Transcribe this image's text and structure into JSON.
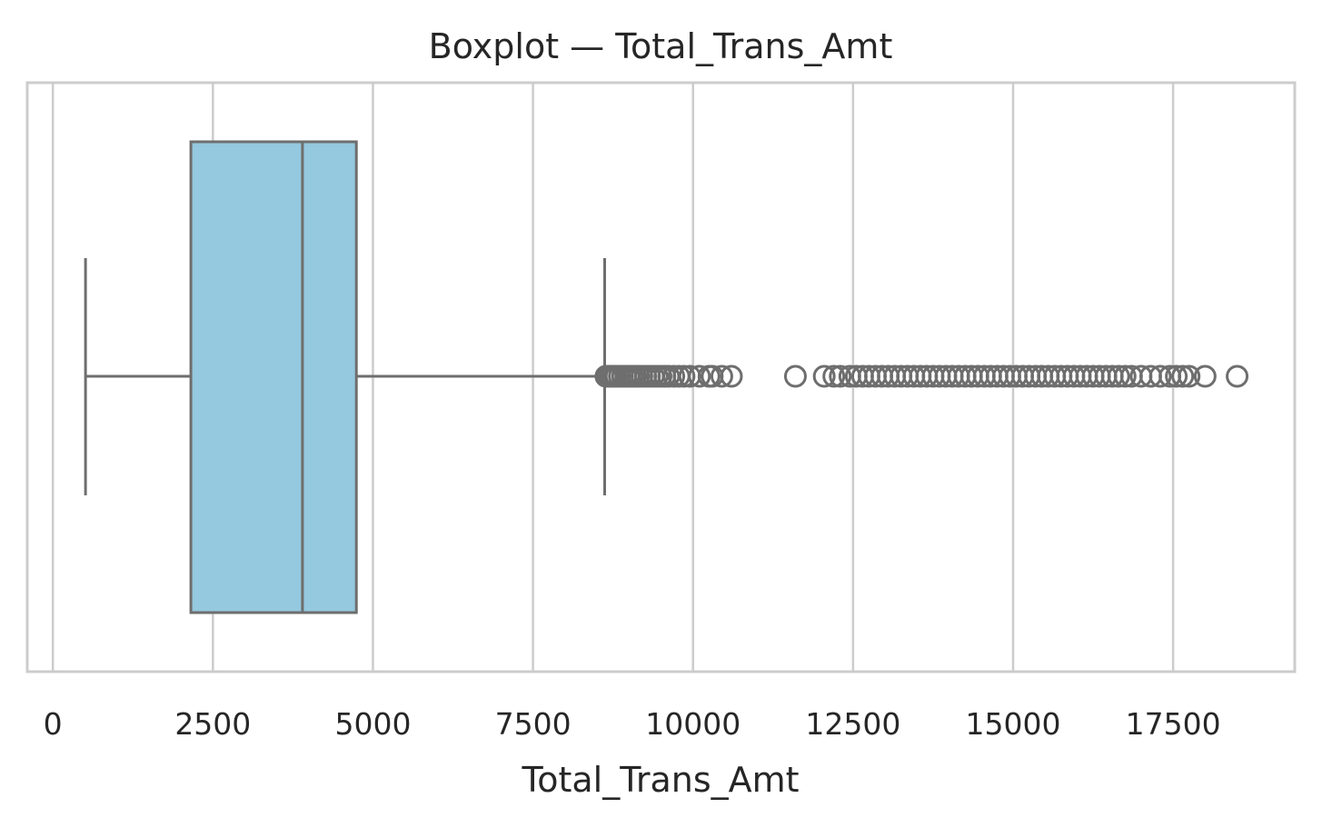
{
  "chart_data": {
    "type": "boxplot",
    "title": "Boxplot — Total_Trans_Amt",
    "xlabel": "Total_Trans_Amt",
    "ylabel": "",
    "orientation": "horizontal",
    "xlim": [
      -400,
      19400
    ],
    "xticks": [
      0,
      2500,
      5000,
      7500,
      10000,
      12500,
      15000,
      17500
    ],
    "grid": "vertical",
    "box": {
      "whisker_low": 510,
      "q1": 2156,
      "median": 3899,
      "q3": 4741,
      "whisker_high": 8620,
      "fill_color": "#95c9df",
      "line_color": "#6e6e6e"
    },
    "outliers": [
      8640,
      8680,
      8720,
      8760,
      8800,
      8850,
      8900,
      8950,
      9000,
      9050,
      9100,
      9150,
      9200,
      9260,
      9320,
      9380,
      9440,
      9500,
      9560,
      9620,
      9700,
      9780,
      9860,
      9950,
      10100,
      10250,
      10300,
      10450,
      10600,
      11600,
      12050,
      12200,
      12300,
      12450,
      12550,
      12650,
      12750,
      12850,
      12950,
      13050,
      13150,
      13250,
      13350,
      13450,
      13550,
      13650,
      13750,
      13850,
      13950,
      14050,
      14150,
      14250,
      14350,
      14450,
      14550,
      14650,
      14750,
      14850,
      14950,
      15050,
      15150,
      15250,
      15350,
      15450,
      15550,
      15650,
      15750,
      15850,
      15950,
      16050,
      16150,
      16250,
      16350,
      16450,
      16550,
      16650,
      16750,
      16850,
      17000,
      17150,
      17300,
      17450,
      17550,
      17650,
      17750,
      18000,
      18500
    ]
  }
}
